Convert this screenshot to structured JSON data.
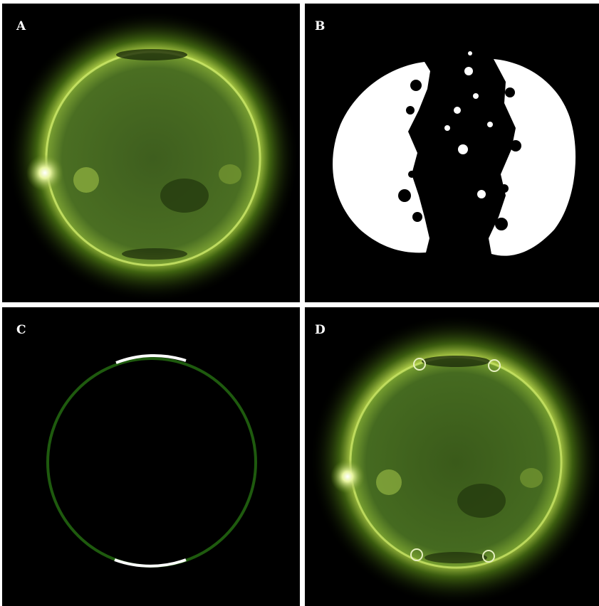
{
  "panels": [
    {
      "label": "A",
      "description": "solar-disk-image"
    },
    {
      "label": "B",
      "description": "binary-mask"
    },
    {
      "label": "C",
      "description": "limb-selection-ring"
    },
    {
      "label": "D",
      "description": "solar-disk-with-markers"
    }
  ],
  "colors": {
    "background": "#000000",
    "disk_green": "#3a5a1a",
    "limb_glow": "#c8e85a",
    "ring_green": "#1e5a0e",
    "ring_highlight": "#ffffff",
    "marker": "#e6f0c0"
  }
}
